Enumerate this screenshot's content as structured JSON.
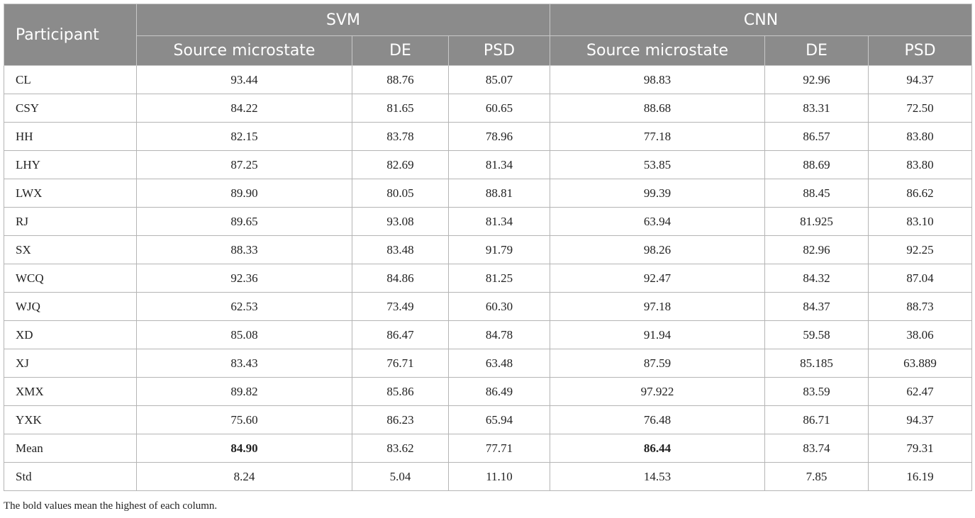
{
  "table": {
    "participant_header": "Participant",
    "groups": [
      {
        "label": "SVM",
        "subheaders": [
          "Source microstate",
          "DE",
          "PSD"
        ]
      },
      {
        "label": "CNN",
        "subheaders": [
          "Source microstate",
          "DE",
          "PSD"
        ]
      }
    ],
    "rows": [
      {
        "participant": "CL",
        "values": [
          "93.44",
          "88.76",
          "85.07",
          "98.83",
          "92.96",
          "94.37"
        ]
      },
      {
        "participant": "CSY",
        "values": [
          "84.22",
          "81.65",
          "60.65",
          "88.68",
          "83.31",
          "72.50"
        ]
      },
      {
        "participant": "HH",
        "values": [
          "82.15",
          "83.78",
          "78.96",
          "77.18",
          "86.57",
          "83.80"
        ]
      },
      {
        "participant": "LHY",
        "values": [
          "87.25",
          "82.69",
          "81.34",
          "53.85",
          "88.69",
          "83.80"
        ]
      },
      {
        "participant": "LWX",
        "values": [
          "89.90",
          "80.05",
          "88.81",
          "99.39",
          "88.45",
          "86.62"
        ]
      },
      {
        "participant": "RJ",
        "values": [
          "89.65",
          "93.08",
          "81.34",
          "63.94",
          "81.925",
          "83.10"
        ]
      },
      {
        "participant": "SX",
        "values": [
          "88.33",
          "83.48",
          "91.79",
          "98.26",
          "82.96",
          "92.25"
        ]
      },
      {
        "participant": "WCQ",
        "values": [
          "92.36",
          "84.86",
          "81.25",
          "92.47",
          "84.32",
          "87.04"
        ]
      },
      {
        "participant": "WJQ",
        "values": [
          "62.53",
          "73.49",
          "60.30",
          "97.18",
          "84.37",
          "88.73"
        ]
      },
      {
        "participant": "XD",
        "values": [
          "85.08",
          "86.47",
          "84.78",
          "91.94",
          "59.58",
          "38.06"
        ]
      },
      {
        "participant": "XJ",
        "values": [
          "83.43",
          "76.71",
          "63.48",
          "87.59",
          "85.185",
          "63.889"
        ]
      },
      {
        "participant": "XMX",
        "values": [
          "89.82",
          "85.86",
          "86.49",
          "97.922",
          "83.59",
          "62.47"
        ]
      },
      {
        "participant": "YXK",
        "values": [
          "75.60",
          "86.23",
          "65.94",
          "76.48",
          "86.71",
          "94.37"
        ]
      },
      {
        "participant": "Mean",
        "values": [
          "84.90",
          "83.62",
          "77.71",
          "86.44",
          "83.74",
          "79.31"
        ],
        "bold": [
          0,
          3
        ]
      },
      {
        "participant": "Std",
        "values": [
          "8.24",
          "5.04",
          "11.10",
          "14.53",
          "7.85",
          "16.19"
        ]
      }
    ]
  },
  "footnote": "The bold values mean the highest of each column.",
  "colors": {
    "header_bg": "#8b8b8b",
    "header_text": "#ffffff",
    "border": "#b5b5b5"
  }
}
